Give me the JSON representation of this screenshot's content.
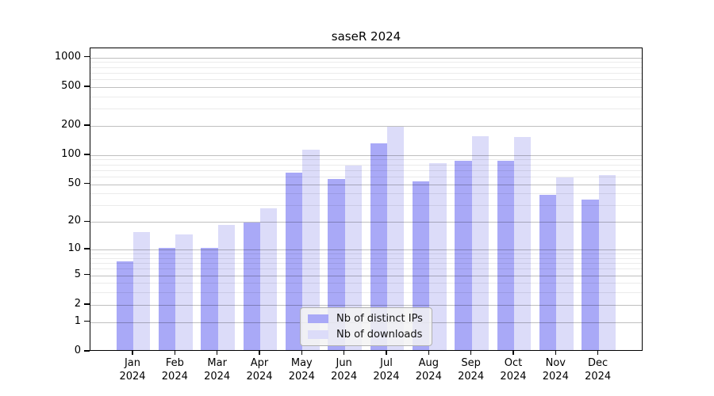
{
  "title": "saseR 2024",
  "chart_data": {
    "type": "bar",
    "title": "saseR 2024",
    "categories": [
      "Jan 2024",
      "Feb 2024",
      "Mar 2024",
      "Apr 2024",
      "May 2024",
      "Jun 2024",
      "Jul 2024",
      "Aug 2024",
      "Sep 2024",
      "Oct 2024",
      "Nov 2024",
      "Dec 2024"
    ],
    "months": [
      "Jan",
      "Feb",
      "Mar",
      "Apr",
      "May",
      "Jun",
      "Jul",
      "Aug",
      "Sep",
      "Oct",
      "Nov",
      "Dec"
    ],
    "year": "2024",
    "series": [
      {
        "name": "Nb of distinct IPs",
        "color": "#a9a9f7",
        "values": [
          7,
          10,
          10,
          19,
          63,
          55,
          128,
          52,
          85,
          85,
          37,
          33
        ]
      },
      {
        "name": "Nb of downloads",
        "color": "#dcdcf9",
        "values": [
          15,
          14,
          18,
          27,
          110,
          75,
          190,
          80,
          151,
          148,
          57,
          60
        ]
      }
    ],
    "xlabel": "",
    "ylabel": "",
    "y_scale": "log10(1+x)",
    "ylim": [
      0,
      1240
    ],
    "y_ticks": [
      0,
      1,
      2,
      5,
      10,
      20,
      50,
      100,
      200,
      500,
      1000
    ],
    "y_tick_labels": [
      "0",
      "1",
      "2",
      "5",
      "10",
      "20",
      "50",
      "100",
      "200",
      "500",
      "1000"
    ],
    "y_minor_ticks": [
      3,
      4,
      6,
      7,
      8,
      9,
      30,
      40,
      60,
      70,
      80,
      90,
      300,
      400,
      600,
      700,
      800,
      900
    ],
    "grid": true,
    "legend_position": "lower center"
  },
  "colors": {
    "background": "#ffffff",
    "axis": "#000000",
    "major_grid": "#c2c2c2",
    "minor_grid": "#ebebeb",
    "legend_bg": "#f3f3f3",
    "legend_border": "#b0b0b0"
  }
}
